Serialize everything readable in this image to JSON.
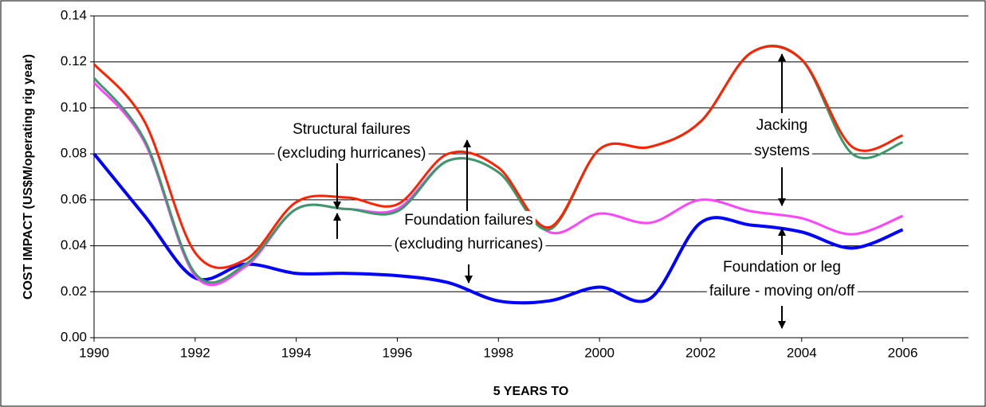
{
  "chart_data": {
    "type": "line",
    "x_label": "5 YEARS TO",
    "y_label": "COST IMPACT (US$M/operating rig year)",
    "x": [
      1990,
      1991,
      1992,
      1993,
      1994,
      1995,
      1996,
      1997,
      1998,
      1999,
      2000,
      2001,
      2002,
      2003,
      2004,
      2005,
      2006
    ],
    "series": [
      {
        "color": "#0000ff",
        "values": [
          0.08,
          0.053,
          0.026,
          0.032,
          0.028,
          0.028,
          0.027,
          0.024,
          0.016,
          0.016,
          0.022,
          0.017,
          0.05,
          0.049,
          0.046,
          0.039,
          0.047
        ]
      },
      {
        "color": "#ff44ff",
        "values": [
          0.111,
          0.085,
          0.027,
          0.031,
          0.056,
          0.056,
          0.056,
          0.077,
          0.072,
          0.046,
          0.054,
          0.05,
          0.06,
          0.055,
          0.052,
          0.045,
          0.053
        ]
      },
      {
        "color": "#3a9a6a",
        "values": [
          0.113,
          0.086,
          0.028,
          0.032,
          0.056,
          0.056,
          0.055,
          0.077,
          0.072,
          0.047,
          0.082,
          0.083,
          0.094,
          0.124,
          0.121,
          0.08,
          0.085
        ]
      },
      {
        "color": "#ff2200",
        "values": [
          0.119,
          0.094,
          0.037,
          0.034,
          0.059,
          0.061,
          0.058,
          0.08,
          0.074,
          0.048,
          0.082,
          0.083,
          0.094,
          0.124,
          0.121,
          0.083,
          0.088
        ]
      }
    ],
    "xlim": [
      1990,
      2007.3
    ],
    "xticks": [
      1990,
      1992,
      1994,
      1996,
      1998,
      2000,
      2002,
      2004,
      2006
    ],
    "ylim": [
      0,
      0.14
    ],
    "yticks": [
      {
        "value": 0,
        "label": "0.00"
      },
      {
        "value": 0.02,
        "label": "0.02"
      },
      {
        "value": 0.04,
        "label": "0.04"
      },
      {
        "value": 0.06,
        "label": "0.06"
      },
      {
        "value": 0.08,
        "label": "0.08"
      },
      {
        "value": 0.1,
        "label": "0.10"
      },
      {
        "value": 0.12,
        "label": "0.12"
      },
      {
        "value": 0.14,
        "label": "0.14"
      }
    ],
    "grid": true,
    "annotations": [
      {
        "lines": [
          "Structural failures",
          "(excluding hurricanes)"
        ]
      },
      {
        "lines": [
          "Foundation failures",
          "(excluding hurricanes)"
        ]
      },
      {
        "lines": [
          "Jacking",
          "systems"
        ]
      },
      {
        "lines": [
          "Foundation or leg",
          "failure - moving on/off"
        ]
      }
    ]
  }
}
